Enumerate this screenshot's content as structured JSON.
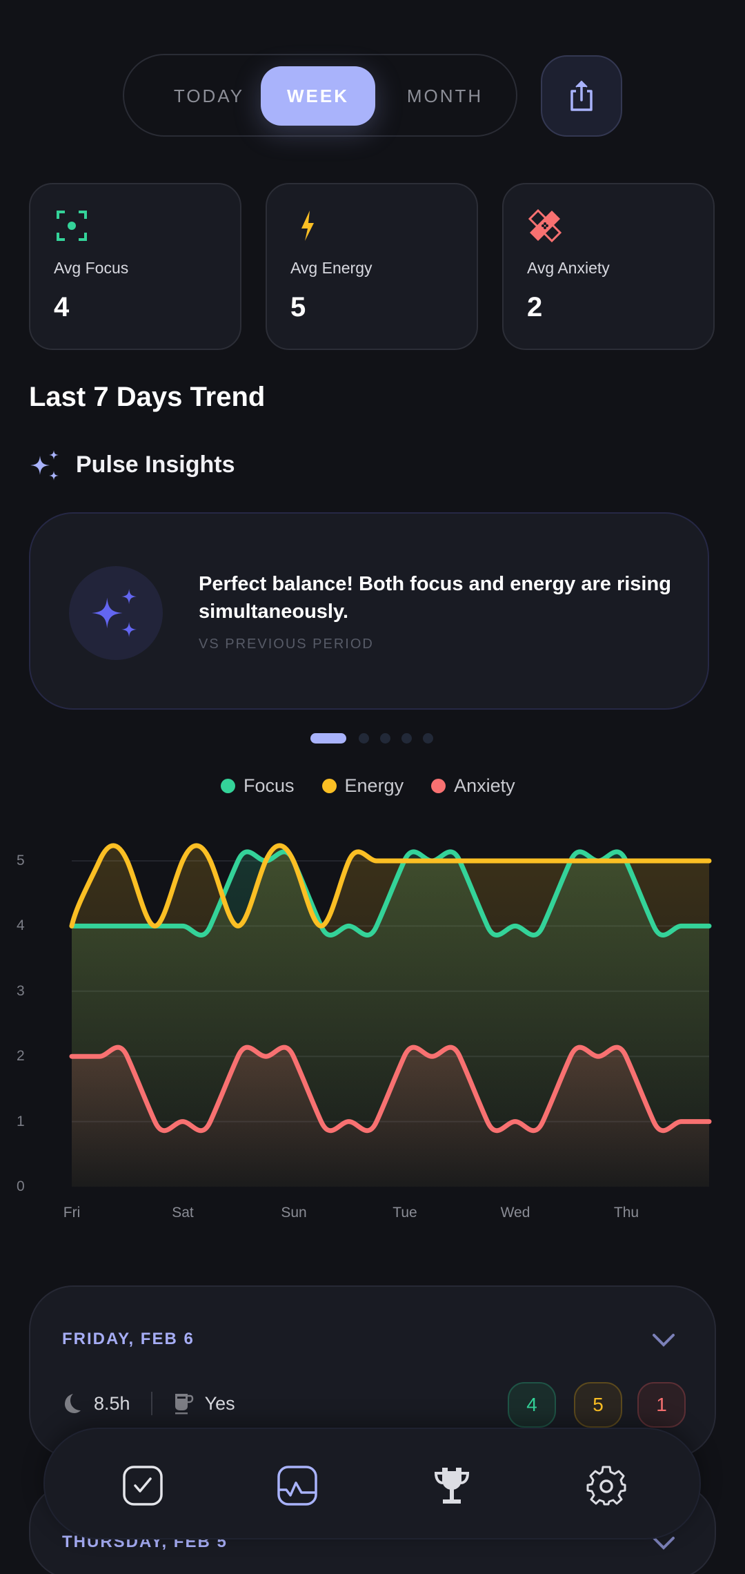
{
  "period_selector": {
    "options": [
      "TODAY",
      "WEEK",
      "MONTH"
    ],
    "selected": "WEEK"
  },
  "share_button": {
    "icon": "share-icon"
  },
  "stats": [
    {
      "label": "Avg Focus",
      "value": "4",
      "icon": "focus-icon",
      "color": "#34d399"
    },
    {
      "label": "Avg Energy",
      "value": "5",
      "icon": "lightning-icon",
      "color": "#fbbf24"
    },
    {
      "label": "Avg Anxiety",
      "value": "2",
      "icon": "bandage-icon",
      "color": "#f87171"
    }
  ],
  "trend_title": "Last 7 Days Trend",
  "insights": {
    "title": "Pulse Insights",
    "message": "Perfect balance! Both focus and energy are rising simultaneously.",
    "subtitle": "VS PREVIOUS PERIOD",
    "page_count": 5,
    "active_page": 0
  },
  "legend": [
    {
      "label": "Focus",
      "color": "#34d399"
    },
    {
      "label": "Energy",
      "color": "#fbbf24"
    },
    {
      "label": "Anxiety",
      "color": "#f87171"
    }
  ],
  "chart_data": {
    "type": "area",
    "title": "Last 7 Days Trend",
    "xlabel": "",
    "ylabel": "",
    "ylim": [
      0,
      5
    ],
    "yticks": [
      0,
      1,
      2,
      3,
      4,
      5
    ],
    "xtick_labels": [
      "Fri",
      "Sat",
      "Sun",
      "Tue",
      "Wed",
      "Thu"
    ],
    "grid": true,
    "smooth": true,
    "point_count": 24,
    "series": [
      {
        "name": "Focus",
        "color": "#34d399",
        "values": [
          4,
          4,
          4,
          4,
          4,
          4,
          5,
          5,
          5,
          4,
          4,
          4,
          5,
          5,
          5,
          4,
          4,
          4,
          5,
          5,
          5,
          4,
          4,
          4
        ]
      },
      {
        "name": "Energy",
        "color": "#fbbf24",
        "values": [
          4,
          5,
          5,
          4,
          5,
          5,
          4,
          5,
          5,
          4,
          5,
          5,
          5,
          5,
          5,
          5,
          5,
          5,
          5,
          5,
          5,
          5,
          5,
          5
        ]
      },
      {
        "name": "Anxiety",
        "color": "#f87171",
        "values": [
          2,
          2,
          2,
          1,
          1,
          1,
          2,
          2,
          2,
          1,
          1,
          1,
          2,
          2,
          2,
          1,
          1,
          1,
          2,
          2,
          2,
          1,
          1,
          1
        ]
      }
    ]
  },
  "day_entries": [
    {
      "date": "FRIDAY, FEB 6",
      "sleep": "8.5h",
      "caffeine": "Yes",
      "scores": {
        "focus": "4",
        "energy": "5",
        "anxiety": "1"
      }
    },
    {
      "date": "THURSDAY, FEB 5"
    }
  ],
  "bottom_nav": [
    {
      "name": "check-in",
      "icon": "checkbox-icon",
      "active": false
    },
    {
      "name": "trends",
      "icon": "chart-icon",
      "active": true
    },
    {
      "name": "achievements",
      "icon": "trophy-icon",
      "active": false
    },
    {
      "name": "settings",
      "icon": "gear-icon",
      "active": false
    }
  ]
}
